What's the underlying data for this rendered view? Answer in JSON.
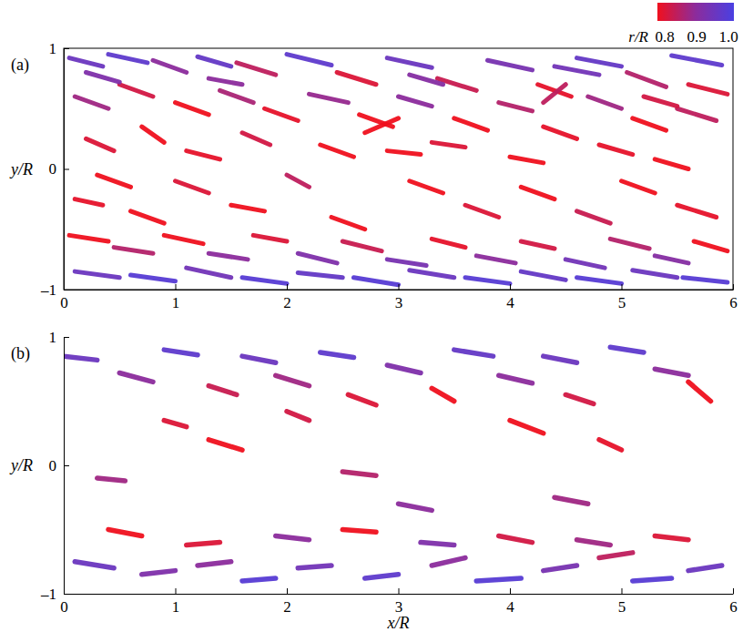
{
  "chart_data": [
    {
      "type": "isosurface",
      "panel": "(a)",
      "y_label": "y/R",
      "xlim": [
        0,
        6
      ],
      "xticks": [
        0,
        1,
        2,
        3,
        4,
        5,
        6
      ],
      "ylim": [
        -1,
        1
      ],
      "yticks": [
        {
          "value": -1,
          "label": "–1"
        },
        0,
        1
      ],
      "colorbar": {
        "label": "r/R",
        "range": [
          0.8,
          1
        ],
        "ticks": [
          0.8,
          0.9,
          {
            "value": 1,
            "label": "1.0"
          }
        ]
      },
      "structures": [
        [
          0.05,
          0.92,
          0.35,
          0.85,
          0.95
        ],
        [
          0.4,
          0.95,
          0.75,
          0.88,
          0.97
        ],
        [
          0.8,
          0.9,
          1.1,
          0.8,
          0.9
        ],
        [
          1.2,
          0.93,
          1.5,
          0.85,
          0.96
        ],
        [
          1.55,
          0.88,
          1.9,
          0.78,
          0.85
        ],
        [
          2.0,
          0.95,
          2.4,
          0.86,
          0.97
        ],
        [
          2.45,
          0.8,
          2.8,
          0.7,
          0.82
        ],
        [
          2.9,
          0.92,
          3.3,
          0.84,
          0.95
        ],
        [
          3.35,
          0.75,
          3.7,
          0.65,
          0.84
        ],
        [
          3.8,
          0.9,
          4.2,
          0.82,
          0.93
        ],
        [
          4.25,
          0.7,
          4.55,
          0.6,
          0.81
        ],
        [
          4.6,
          0.92,
          5.0,
          0.85,
          0.96
        ],
        [
          5.05,
          0.8,
          5.4,
          0.68,
          0.86
        ],
        [
          5.45,
          0.94,
          5.9,
          0.86,
          0.97
        ],
        [
          5.6,
          0.7,
          5.95,
          0.62,
          0.82
        ],
        [
          0.1,
          0.6,
          0.4,
          0.5,
          0.88
        ],
        [
          0.5,
          0.7,
          0.8,
          0.6,
          0.83
        ],
        [
          1.0,
          0.55,
          1.3,
          0.45,
          0.8
        ],
        [
          1.4,
          0.65,
          1.7,
          0.55,
          0.87
        ],
        [
          1.8,
          0.5,
          2.1,
          0.4,
          0.81
        ],
        [
          2.2,
          0.62,
          2.55,
          0.55,
          0.89
        ],
        [
          2.65,
          0.45,
          2.95,
          0.35,
          0.8
        ],
        [
          3.0,
          0.6,
          3.3,
          0.52,
          0.9
        ],
        [
          3.5,
          0.42,
          3.8,
          0.32,
          0.8
        ],
        [
          3.9,
          0.55,
          4.2,
          0.48,
          0.86
        ],
        [
          4.3,
          0.35,
          4.6,
          0.25,
          0.81
        ],
        [
          4.7,
          0.6,
          5.0,
          0.5,
          0.88
        ],
        [
          5.1,
          0.42,
          5.4,
          0.32,
          0.8
        ],
        [
          5.5,
          0.5,
          5.85,
          0.4,
          0.85
        ],
        [
          0.2,
          0.25,
          0.45,
          0.15,
          0.82
        ],
        [
          0.7,
          0.35,
          0.9,
          0.22,
          0.8
        ],
        [
          1.1,
          0.15,
          1.4,
          0.08,
          0.81
        ],
        [
          1.6,
          0.3,
          1.85,
          0.2,
          0.83
        ],
        [
          2.3,
          0.2,
          2.6,
          0.1,
          0.8
        ],
        [
          2.9,
          0.15,
          3.2,
          0.12,
          0.8
        ],
        [
          3.3,
          0.22,
          3.6,
          0.18,
          0.82
        ],
        [
          4.0,
          0.1,
          4.3,
          0.05,
          0.8
        ],
        [
          4.8,
          0.2,
          5.1,
          0.12,
          0.81
        ],
        [
          5.3,
          0.08,
          5.6,
          0.0,
          0.8
        ],
        [
          0.3,
          -0.05,
          0.6,
          -0.15,
          0.8
        ],
        [
          0.1,
          -0.25,
          0.35,
          -0.3,
          0.81
        ],
        [
          0.6,
          -0.35,
          0.9,
          -0.45,
          0.8
        ],
        [
          1.0,
          -0.1,
          1.3,
          -0.2,
          0.82
        ],
        [
          1.5,
          -0.3,
          1.8,
          -0.35,
          0.8
        ],
        [
          2.0,
          -0.05,
          2.2,
          -0.15,
          0.85
        ],
        [
          2.4,
          -0.4,
          2.7,
          -0.5,
          0.8
        ],
        [
          3.1,
          -0.1,
          3.4,
          -0.2,
          0.8
        ],
        [
          3.6,
          -0.3,
          3.9,
          -0.4,
          0.82
        ],
        [
          4.1,
          -0.15,
          4.4,
          -0.25,
          0.8
        ],
        [
          4.6,
          -0.35,
          4.9,
          -0.45,
          0.84
        ],
        [
          5.0,
          -0.1,
          5.3,
          -0.2,
          0.8
        ],
        [
          5.5,
          -0.3,
          5.85,
          -0.4,
          0.81
        ],
        [
          0.05,
          -0.55,
          0.4,
          -0.6,
          0.8
        ],
        [
          0.45,
          -0.65,
          0.8,
          -0.7,
          0.86
        ],
        [
          0.9,
          -0.55,
          1.25,
          -0.62,
          0.8
        ],
        [
          1.3,
          -0.7,
          1.65,
          -0.75,
          0.9
        ],
        [
          1.7,
          -0.55,
          2.0,
          -0.6,
          0.82
        ],
        [
          2.1,
          -0.7,
          2.45,
          -0.78,
          0.92
        ],
        [
          2.5,
          -0.6,
          2.85,
          -0.68,
          0.84
        ],
        [
          2.9,
          -0.75,
          3.25,
          -0.8,
          0.93
        ],
        [
          3.3,
          -0.58,
          3.6,
          -0.65,
          0.81
        ],
        [
          3.7,
          -0.72,
          4.05,
          -0.78,
          0.9
        ],
        [
          4.1,
          -0.6,
          4.4,
          -0.66,
          0.83
        ],
        [
          4.5,
          -0.75,
          4.85,
          -0.82,
          0.94
        ],
        [
          4.9,
          -0.58,
          5.25,
          -0.66,
          0.86
        ],
        [
          5.3,
          -0.72,
          5.6,
          -0.78,
          0.91
        ],
        [
          5.65,
          -0.6,
          5.95,
          -0.68,
          0.8
        ],
        [
          0.1,
          -0.85,
          0.5,
          -0.9,
          0.95
        ],
        [
          0.6,
          -0.88,
          1.0,
          -0.93,
          0.98
        ],
        [
          1.1,
          -0.82,
          1.5,
          -0.9,
          0.94
        ],
        [
          1.6,
          -0.9,
          2.0,
          -0.95,
          0.98
        ],
        [
          2.1,
          -0.86,
          2.5,
          -0.9,
          0.96
        ],
        [
          2.6,
          -0.9,
          3.0,
          -0.96,
          0.98
        ],
        [
          3.1,
          -0.84,
          3.5,
          -0.9,
          0.95
        ],
        [
          3.6,
          -0.9,
          4.0,
          -0.95,
          0.98
        ],
        [
          4.1,
          -0.85,
          4.5,
          -0.92,
          0.96
        ],
        [
          4.6,
          -0.9,
          5.0,
          -0.95,
          0.98
        ],
        [
          5.1,
          -0.84,
          5.5,
          -0.9,
          0.95
        ],
        [
          5.55,
          -0.9,
          5.95,
          -0.94,
          0.98
        ],
        [
          0.2,
          0.8,
          0.5,
          0.72,
          0.92
        ],
        [
          1.3,
          0.75,
          1.6,
          0.7,
          0.9
        ],
        [
          3.1,
          0.78,
          3.4,
          0.7,
          0.91
        ],
        [
          4.4,
          0.85,
          4.8,
          0.78,
          0.94
        ],
        [
          5.2,
          0.6,
          5.5,
          0.52,
          0.83
        ],
        [
          2.7,
          0.3,
          3.0,
          0.42,
          0.8
        ],
        [
          4.3,
          0.55,
          4.5,
          0.7,
          0.85
        ]
      ]
    },
    {
      "type": "isosurface",
      "panel": "(b)",
      "x_label": "x/R",
      "y_label": "y/R",
      "xlim": [
        0,
        6
      ],
      "xticks": [
        0,
        1,
        2,
        3,
        4,
        5,
        6
      ],
      "ylim": [
        -1,
        1
      ],
      "yticks": [
        {
          "value": -1,
          "label": "–1"
        },
        0,
        1
      ],
      "structures": [
        [
          0.0,
          0.85,
          0.3,
          0.82,
          0.95
        ],
        [
          0.5,
          0.72,
          0.8,
          0.65,
          0.9
        ],
        [
          0.9,
          0.9,
          1.2,
          0.86,
          0.97
        ],
        [
          1.3,
          0.62,
          1.55,
          0.55,
          0.84
        ],
        [
          1.6,
          0.85,
          1.9,
          0.8,
          0.95
        ],
        [
          1.9,
          0.7,
          2.2,
          0.62,
          0.88
        ],
        [
          2.3,
          0.88,
          2.6,
          0.84,
          0.97
        ],
        [
          2.55,
          0.55,
          2.8,
          0.47,
          0.82
        ],
        [
          2.9,
          0.78,
          3.2,
          0.72,
          0.92
        ],
        [
          3.3,
          0.6,
          3.5,
          0.5,
          0.8
        ],
        [
          3.5,
          0.9,
          3.85,
          0.85,
          0.96
        ],
        [
          3.9,
          0.7,
          4.2,
          0.64,
          0.9
        ],
        [
          4.3,
          0.85,
          4.6,
          0.8,
          0.95
        ],
        [
          4.5,
          0.55,
          4.75,
          0.48,
          0.83
        ],
        [
          4.9,
          0.92,
          5.2,
          0.88,
          0.97
        ],
        [
          5.3,
          0.75,
          5.6,
          0.7,
          0.9
        ],
        [
          5.6,
          0.65,
          5.8,
          0.5,
          0.8
        ],
        [
          0.9,
          0.35,
          1.1,
          0.3,
          0.82
        ],
        [
          1.3,
          0.2,
          1.6,
          0.12,
          0.8
        ],
        [
          2.0,
          0.42,
          2.2,
          0.35,
          0.83
        ],
        [
          4.0,
          0.35,
          4.3,
          0.25,
          0.8
        ],
        [
          4.8,
          0.2,
          5.0,
          0.12,
          0.81
        ],
        [
          0.3,
          -0.1,
          0.55,
          -0.12,
          0.88
        ],
        [
          2.5,
          -0.05,
          2.8,
          -0.08,
          0.86
        ],
        [
          3.0,
          -0.3,
          3.3,
          -0.35,
          0.9
        ],
        [
          4.4,
          -0.25,
          4.7,
          -0.3,
          0.88
        ],
        [
          0.4,
          -0.5,
          0.7,
          -0.55,
          0.8
        ],
        [
          1.1,
          -0.62,
          1.4,
          -0.6,
          0.82
        ],
        [
          1.9,
          -0.55,
          2.2,
          -0.58,
          0.9
        ],
        [
          2.5,
          -0.5,
          2.8,
          -0.52,
          0.8
        ],
        [
          3.2,
          -0.6,
          3.5,
          -0.62,
          0.92
        ],
        [
          3.9,
          -0.55,
          4.2,
          -0.6,
          0.83
        ],
        [
          4.6,
          -0.58,
          4.9,
          -0.62,
          0.88
        ],
        [
          5.3,
          -0.55,
          5.6,
          -0.58,
          0.82
        ],
        [
          0.1,
          -0.75,
          0.45,
          -0.8,
          0.95
        ],
        [
          0.7,
          -0.85,
          1.0,
          -0.82,
          0.92
        ],
        [
          1.2,
          -0.78,
          1.5,
          -0.75,
          0.9
        ],
        [
          1.6,
          -0.9,
          1.9,
          -0.88,
          0.98
        ],
        [
          2.1,
          -0.8,
          2.4,
          -0.78,
          0.94
        ],
        [
          2.7,
          -0.88,
          3.0,
          -0.85,
          0.97
        ],
        [
          3.3,
          -0.78,
          3.6,
          -0.72,
          0.9
        ],
        [
          3.7,
          -0.9,
          4.1,
          -0.88,
          0.98
        ],
        [
          4.3,
          -0.82,
          4.6,
          -0.78,
          0.93
        ],
        [
          4.8,
          -0.72,
          5.1,
          -0.68,
          0.85
        ],
        [
          5.1,
          -0.9,
          5.45,
          -0.88,
          0.98
        ],
        [
          5.6,
          -0.82,
          5.9,
          -0.78,
          0.95
        ]
      ]
    }
  ]
}
